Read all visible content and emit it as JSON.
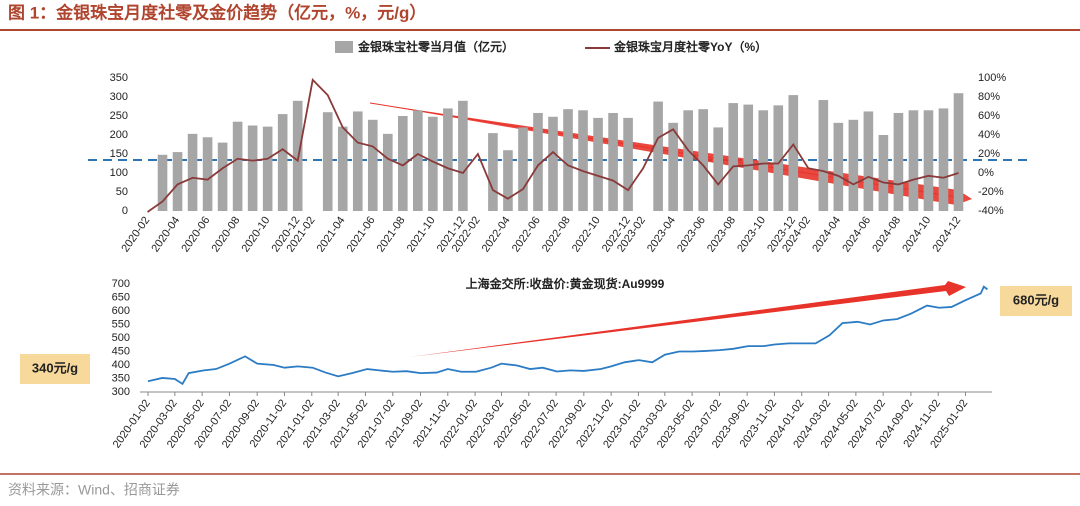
{
  "title": "图 1：金银珠宝月度社零及金价趋势（亿元，%，元/g）",
  "source": "资料来源：Wind、招商证券",
  "chart_data": [
    {
      "type": "bar",
      "categories": [
        "2020-02",
        null,
        "2020-04",
        null,
        "2020-06",
        null,
        "2020-08",
        null,
        "2020-10",
        null,
        "2020-12",
        "2021-02",
        null,
        "2021-04",
        null,
        "2021-06",
        null,
        "2021-08",
        null,
        "2021-10",
        null,
        "2021-12",
        "2022-02",
        null,
        "2022-04",
        null,
        "2022-06",
        null,
        "2022-08",
        null,
        "2022-10",
        null,
        "2022-12",
        "2023-02",
        null,
        "2023-04",
        null,
        "2023-06",
        null,
        "2023-08",
        null,
        "2023-10",
        null,
        "2023-12",
        "2024-02",
        null,
        "2024-04",
        null,
        "2024-06",
        null,
        "2024-08",
        null,
        "2024-10",
        null,
        "2024-12"
      ],
      "series": [
        {
          "name": "金银珠宝社零当月值（亿元）",
          "type": "bar",
          "color": "#a6a6a6",
          "values": [
            null,
            148,
            155,
            203,
            194,
            180,
            235,
            225,
            222,
            255,
            290,
            null,
            260,
            222,
            262,
            240,
            203,
            250,
            265,
            248,
            270,
            290,
            null,
            205,
            160,
            220,
            258,
            248,
            268,
            265,
            245,
            258,
            245,
            null,
            288,
            232,
            265,
            268,
            220,
            284,
            280,
            265,
            278,
            305,
            null,
            292,
            232,
            240,
            262,
            200,
            258,
            265,
            265,
            270,
            310
          ]
        },
        {
          "name": "金银珠宝月度社零YoY（%）",
          "type": "line",
          "axis": "y2",
          "color": "#8b3a3a",
          "values": [
            -41,
            -30,
            -12,
            -5,
            -7,
            5,
            15,
            13,
            15,
            25,
            13,
            98,
            82,
            48,
            32,
            28,
            15,
            8,
            20,
            12,
            5,
            0,
            20,
            -18,
            -27,
            -17,
            8,
            22,
            8,
            2,
            -3,
            -8,
            -18,
            5,
            37,
            46,
            24,
            8,
            -12,
            7,
            8,
            10,
            10,
            30,
            5,
            2,
            -3,
            -12,
            -4,
            -10,
            -12,
            -7,
            -3,
            -5,
            0
          ]
        }
      ],
      "ylim": [
        0,
        350
      ],
      "yticks": [
        0,
        50,
        100,
        150,
        200,
        250,
        300,
        350
      ],
      "y2lim": [
        -40,
        100
      ],
      "y2ticks": [
        {
          "value": -40,
          "label": "-40%"
        },
        {
          "value": -20,
          "label": "-20%"
        },
        {
          "value": 0,
          "label": "0%"
        },
        {
          "value": 20,
          "label": "20%"
        },
        {
          "value": 40,
          "label": "40%"
        },
        {
          "value": 60,
          "label": "60%"
        },
        {
          "value": 80,
          "label": "80%"
        },
        {
          "value": 100,
          "label": "100%"
        }
      ],
      "legend": "top"
    },
    {
      "type": "line",
      "title": "上海金交所:收盘价:黄金现货:Au9999",
      "x": [
        "2020-01-02",
        "2020-02-03",
        "2020-03-02",
        "2020-03-19",
        "2020-04-02",
        "2020-05-06",
        "2020-06-02",
        "2020-07-02",
        "2020-08-06",
        "2020-09-02",
        "2020-10-09",
        "2020-11-02",
        "2020-12-02",
        "2021-01-04",
        "2021-02-02",
        "2021-03-02",
        "2021-04-02",
        "2021-05-06",
        "2021-06-02",
        "2021-07-02",
        "2021-08-02",
        "2021-09-02",
        "2021-10-08",
        "2021-11-02",
        "2021-12-02",
        "2022-01-04",
        "2022-02-07",
        "2022-03-02",
        "2022-04-06",
        "2022-05-05",
        "2022-06-02",
        "2022-07-04",
        "2022-08-02",
        "2022-09-02",
        "2022-10-10",
        "2022-11-02",
        "2022-12-02",
        "2023-01-03",
        "2023-02-02",
        "2023-03-02",
        "2023-04-03",
        "2023-05-04",
        "2023-06-02",
        "2023-07-03",
        "2023-08-02",
        "2023-09-04",
        "2023-10-09",
        "2023-11-02",
        "2023-12-04",
        "2024-01-02",
        "2024-02-02",
        "2024-03-04",
        "2024-04-02",
        "2024-05-06",
        "2024-06-03",
        "2024-07-02",
        "2024-08-02",
        "2024-09-02",
        "2024-10-08",
        "2024-11-04",
        "2024-12-02",
        "2025-01-02",
        "2025-02-05",
        "2025-02-12",
        "2025-02-20"
      ],
      "series": [
        {
          "name": "上海金交所:收盘价:黄金现货:Au9999",
          "color": "#2b7cc4",
          "values": [
            340,
            352,
            348,
            330,
            370,
            380,
            385,
            405,
            432,
            405,
            400,
            390,
            395,
            390,
            372,
            358,
            370,
            385,
            380,
            375,
            377,
            370,
            372,
            385,
            375,
            375,
            390,
            405,
            398,
            385,
            390,
            376,
            380,
            378,
            385,
            395,
            410,
            418,
            410,
            438,
            450,
            450,
            452,
            455,
            460,
            470,
            470,
            476,
            480,
            480,
            480,
            510,
            555,
            560,
            550,
            565,
            570,
            590,
            620,
            612,
            615,
            640,
            665,
            690,
            680
          ]
        }
      ],
      "xlim": [
        "2020-01-02",
        "2025-02-28"
      ],
      "xticks": [
        "2020-01-02",
        "2020-03-02",
        "2020-05-02",
        "2020-07-02",
        "2020-09-02",
        "2020-11-02",
        "2021-01-02",
        "2021-03-02",
        "2021-05-02",
        "2021-07-02",
        "2021-09-02",
        "2021-11-02",
        "2022-01-02",
        "2022-03-02",
        "2022-05-02",
        "2022-07-02",
        "2022-09-02",
        "2022-11-02",
        "2023-01-02",
        "2023-03-02",
        "2023-05-02",
        "2023-07-02",
        "2023-09-02",
        "2023-11-02",
        "2024-01-02",
        "2024-03-02",
        "2024-05-02",
        "2024-07-02",
        "2024-09-02",
        "2024-11-02",
        "2025-01-02"
      ],
      "ylim": [
        300,
        700
      ],
      "yticks": [
        300,
        350,
        400,
        450,
        500,
        550,
        600,
        650,
        700
      ],
      "annotations": [
        "340元/g",
        "680元/g"
      ]
    }
  ]
}
